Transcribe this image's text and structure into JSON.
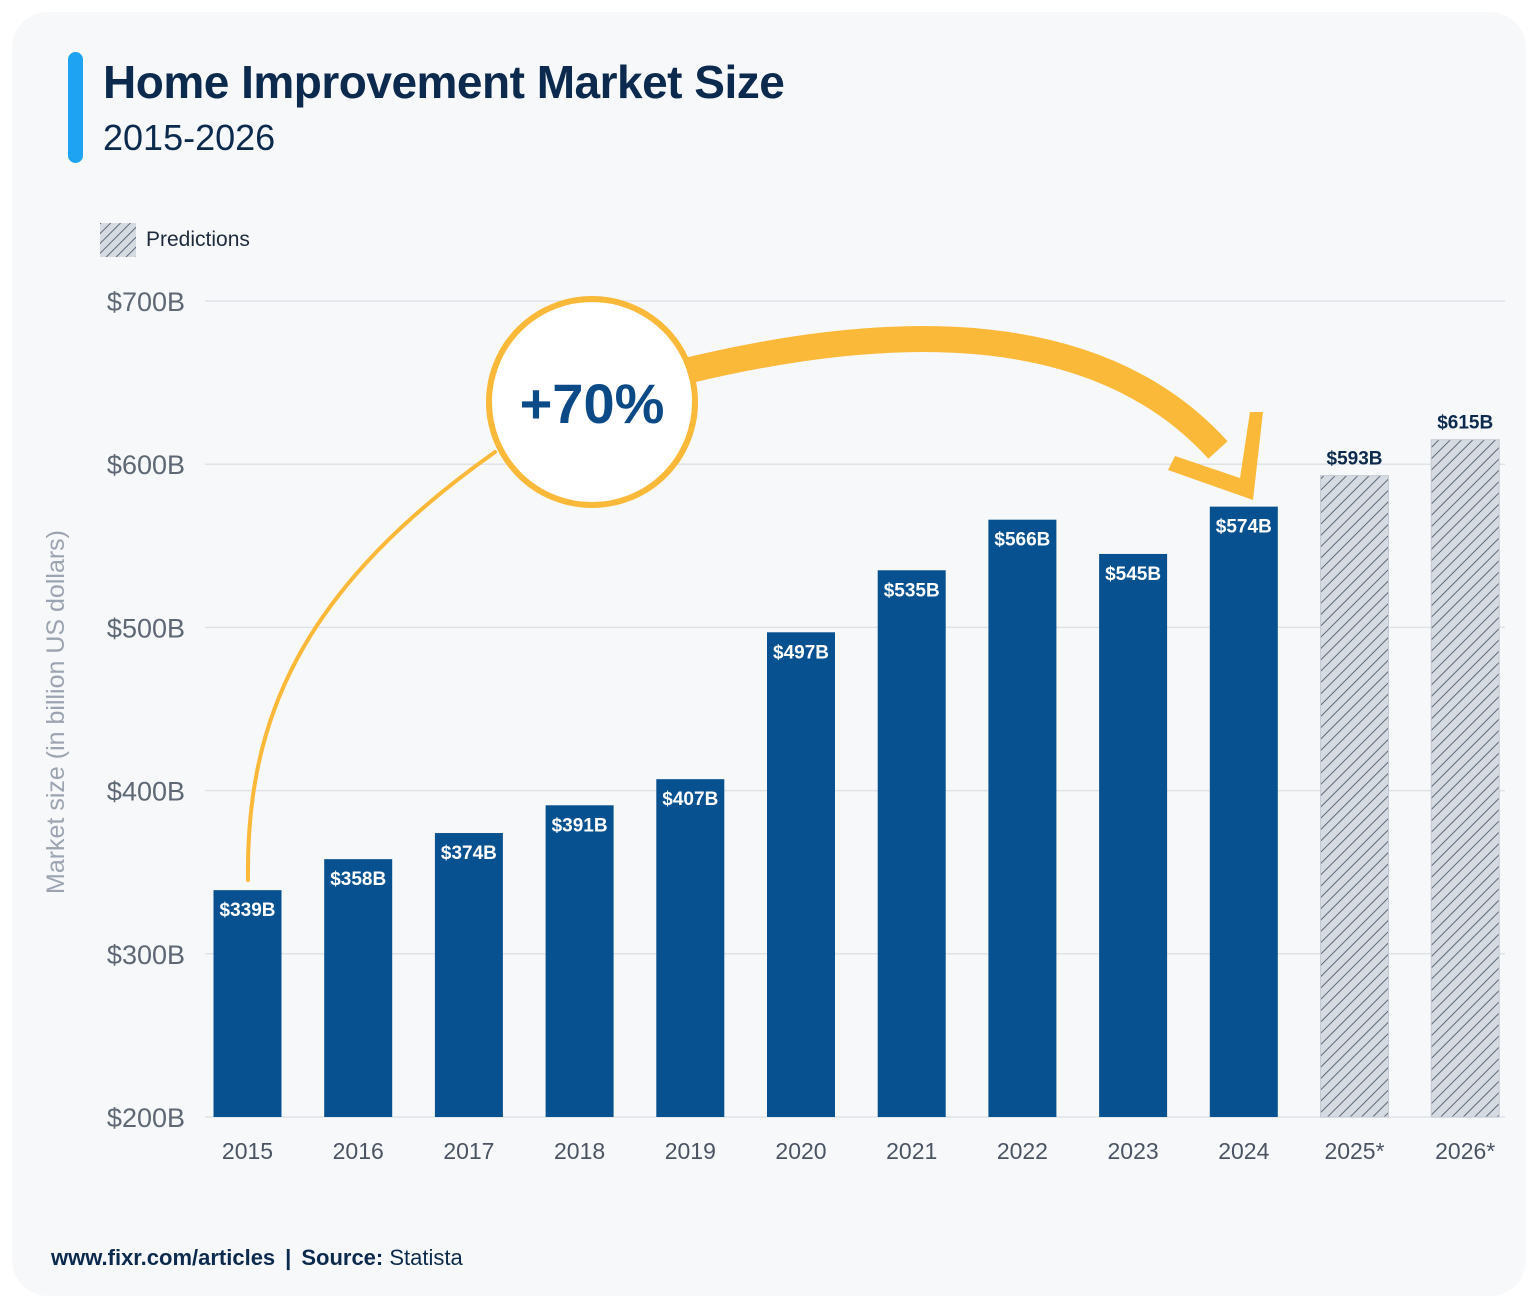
{
  "title": "Home Improvement Market Size",
  "subtitle": "2015-2026",
  "legend": {
    "label": "Predictions"
  },
  "annotation": {
    "text": "+70%"
  },
  "footer": {
    "url": "www.fixr.com/articles",
    "separator": "|",
    "source_label": "Source:",
    "source_value": "Statista"
  },
  "colors": {
    "bar": "#085190",
    "prediction_fill": "#d6dbe2",
    "prediction_hatch": "#5d6978",
    "arrow": "#fbb93a",
    "accent": "#1ea3f3",
    "text_dark": "#0c2a4d"
  },
  "chart_data": {
    "type": "bar",
    "ylabel": "Market size (in billion US dollars)",
    "ylim": [
      200,
      700
    ],
    "yticks": [
      200,
      300,
      400,
      500,
      600,
      700
    ],
    "ytick_labels": [
      "$200B",
      "$300B",
      "$400B",
      "$500B",
      "$600B",
      "$700B"
    ],
    "grid": true,
    "legend_position": "top-left",
    "categories": [
      "2015",
      "2016",
      "2017",
      "2018",
      "2019",
      "2020",
      "2021",
      "2022",
      "2023",
      "2024",
      "2025*",
      "2026*"
    ],
    "values": [
      339,
      358,
      374,
      391,
      407,
      497,
      535,
      566,
      545,
      574,
      593,
      615
    ],
    "value_labels": [
      "$339B",
      "$358B",
      "$374B",
      "$391B",
      "$407B",
      "$497B",
      "$535B",
      "$566B",
      "$545B",
      "$574B",
      "$593B",
      "$615B"
    ],
    "predicted": [
      false,
      false,
      false,
      false,
      false,
      false,
      false,
      false,
      false,
      false,
      true,
      true
    ]
  }
}
